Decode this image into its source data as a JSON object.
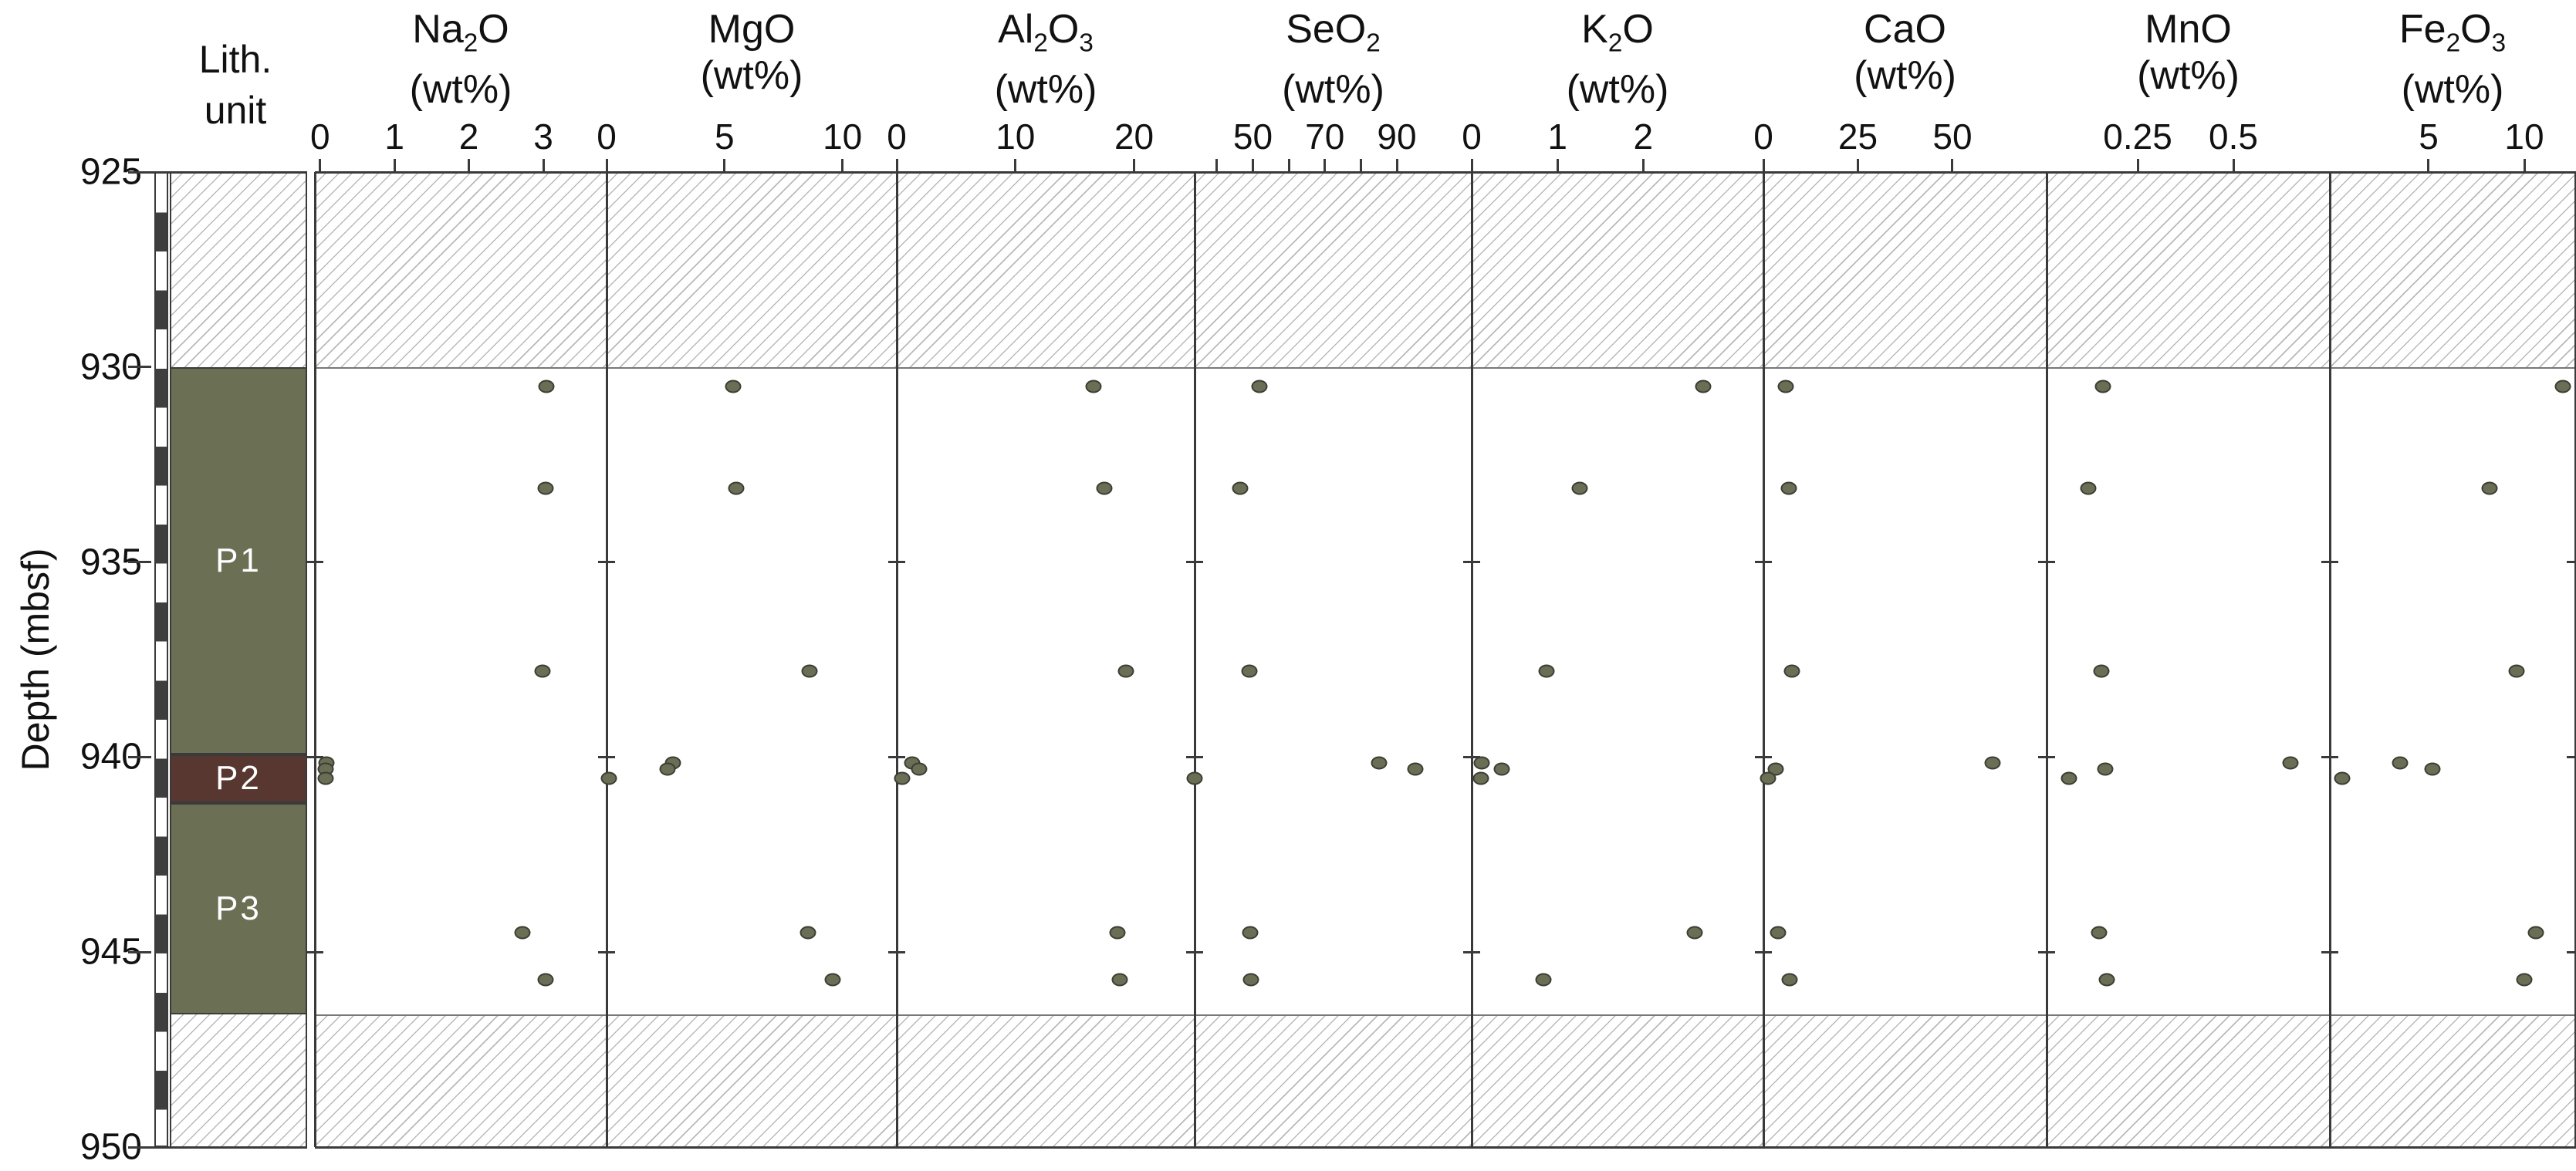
{
  "figure": {
    "colors": {
      "axis_line": "#3a3a3a",
      "hatch_line": "#b9b9b9",
      "dot_fill": "#6a6e55",
      "dot_stroke": "#3b3f33",
      "lith_green": "#6b7055",
      "lith_maroon": "#573730"
    }
  },
  "yaxis": {
    "label": "Depth (mbsf)",
    "ticks": [
      925,
      930,
      935,
      940,
      945,
      950
    ],
    "interior_tick_depths": [
      935,
      940,
      945
    ]
  },
  "lith_column": {
    "header_line1": "Lith.",
    "header_line2": "unit"
  },
  "chart_data": {
    "type": "scatter",
    "unit_label": "(wt%)",
    "y_axis": {
      "label": "Depth (mbsf)",
      "range": [
        925,
        950
      ],
      "inverted": true,
      "tick_values": [
        925,
        930,
        935,
        940,
        945,
        950
      ]
    },
    "sample_depths_mbsf": [
      930.5,
      933.1,
      937.8,
      940.15,
      940.3,
      940.55,
      944.5,
      945.7
    ],
    "series": [
      {
        "name": "Na2O",
        "axis_range": [
          -0.07,
          3.85
        ],
        "ticks": [
          {
            "v": 0,
            "label": "0"
          },
          {
            "v": 1,
            "label": "1"
          },
          {
            "v": 2,
            "label": "2"
          },
          {
            "v": 3,
            "label": "3"
          }
        ],
        "values": [
          3.04,
          3.03,
          2.99,
          0.09,
          0.08,
          0.07,
          2.72,
          3.03
        ]
      },
      {
        "name": "MgO",
        "axis_range": [
          0,
          12.3
        ],
        "ticks": [
          {
            "v": 0,
            "label": "0"
          },
          {
            "v": 5,
            "label": "5"
          },
          {
            "v": 10,
            "label": "10"
          }
        ],
        "values": [
          5.35,
          5.5,
          8.6,
          2.8,
          2.6,
          0.1,
          8.55,
          9.6
        ]
      },
      {
        "name": "Al2O3",
        "axis_range": [
          0,
          25.1
        ],
        "ticks": [
          {
            "v": 0,
            "label": "0"
          },
          {
            "v": 10,
            "label": "10"
          },
          {
            "v": 20,
            "label": "20"
          }
        ],
        "values": [
          16.6,
          17.5,
          19.3,
          1.3,
          1.9,
          0.45,
          18.6,
          18.8
        ]
      },
      {
        "name": "SeO2",
        "axis_range": [
          33.8,
          110.8
        ],
        "ticks": [
          {
            "v": 40,
            "label": ""
          },
          {
            "v": 50,
            "label": "50"
          },
          {
            "v": 60,
            "label": ""
          },
          {
            "v": 70,
            "label": "70"
          },
          {
            "v": 80,
            "label": ""
          },
          {
            "v": 90,
            "label": "90"
          }
        ],
        "values": [
          51.8,
          46.4,
          49.0,
          85.1,
          95.1,
          33.8,
          49.2,
          49.4
        ]
      },
      {
        "name": "K2O",
        "axis_range": [
          0,
          3.4
        ],
        "ticks": [
          {
            "v": 0,
            "label": "0"
          },
          {
            "v": 1,
            "label": "1"
          },
          {
            "v": 2,
            "label": "2"
          }
        ],
        "values": [
          2.7,
          1.26,
          0.87,
          0.12,
          0.35,
          0.11,
          2.6,
          0.84
        ]
      },
      {
        "name": "CaO",
        "axis_range": [
          0,
          74.9
        ],
        "ticks": [
          {
            "v": 0,
            "label": "0"
          },
          {
            "v": 25,
            "label": "25"
          },
          {
            "v": 50,
            "label": "50"
          }
        ],
        "values": [
          6.0,
          6.8,
          7.6,
          60.6,
          3.2,
          1.2,
          3.9,
          7.0
        ]
      },
      {
        "name": "MnO",
        "axis_range": [
          0.012,
          0.752
        ],
        "ticks": [
          {
            "v": 0.25,
            "label": "0.25"
          },
          {
            "v": 0.5,
            "label": "0.5"
          }
        ],
        "values": [
          0.16,
          0.12,
          0.155,
          0.65,
          0.165,
          0.07,
          0.15,
          0.17
        ]
      },
      {
        "name": "Fe2O3",
        "axis_range": [
          -0.16,
          12.66
        ],
        "ticks": [
          {
            "v": 5,
            "label": "5"
          },
          {
            "v": 10,
            "label": "10"
          }
        ],
        "values": [
          12.0,
          8.2,
          9.6,
          3.5,
          5.2,
          0.5,
          10.6,
          10.0
        ]
      }
    ],
    "lithology": {
      "units": [
        {
          "label": "",
          "type": "hatch",
          "top": 925,
          "bottom": 930
        },
        {
          "label": "P1",
          "type": "solid",
          "color": "#6b7055",
          "top": 930,
          "bottom": 939.93
        },
        {
          "label": "P2",
          "type": "solid",
          "color": "#573730",
          "top": 939.93,
          "bottom": 941.18
        },
        {
          "label": "P3",
          "type": "solid",
          "color": "#6b7055",
          "top": 941.18,
          "bottom": 946.6
        },
        {
          "label": "",
          "type": "hatch",
          "top": 946.6,
          "bottom": 950
        }
      ]
    },
    "no_data_intervals_mbsf": [
      [
        925,
        930
      ],
      [
        946.6,
        950
      ]
    ],
    "recovery_bar": {
      "segment_height_m": 1,
      "colors": [
        "#ffffff",
        "#3e3e3e"
      ]
    }
  }
}
